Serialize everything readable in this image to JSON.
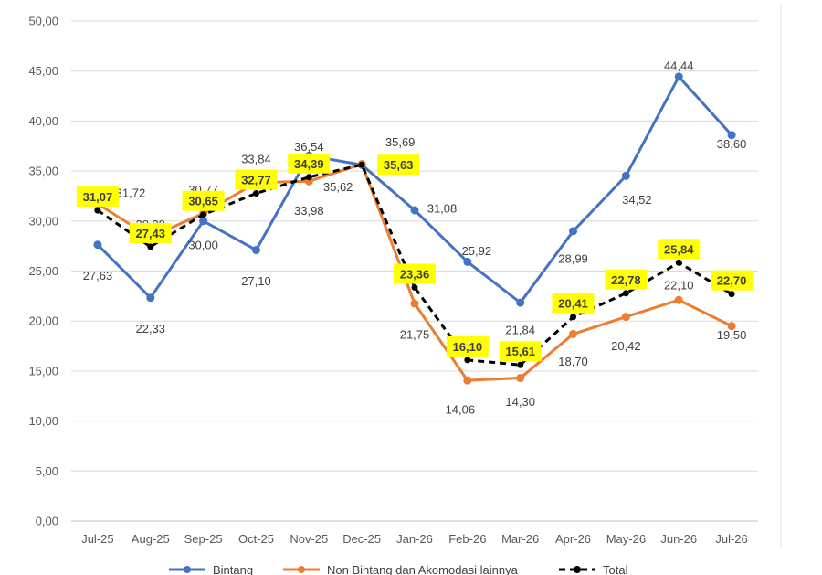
{
  "chart_data": {
    "type": "line",
    "categories": [
      "Jul-25",
      "Aug-25",
      "Sep-25",
      "Oct-25",
      "Nov-25",
      "Dec-25",
      "Jan-26",
      "Feb-26",
      "Mar-26",
      "Apr-26",
      "May-26",
      "Jun-26",
      "Jul-26"
    ],
    "ylim": [
      0,
      50
    ],
    "ytick_labels": [
      "0,00",
      "5,00",
      "10,00",
      "15,00",
      "20,00",
      "25,00",
      "30,00",
      "35,00",
      "40,00",
      "45,00",
      "50,00"
    ],
    "grid": true,
    "legend_position": "bottom",
    "series": [
      {
        "name": "Bintang",
        "color": "#4472C4",
        "style": "solid",
        "values": [
          27.63,
          22.33,
          30.0,
          27.1,
          36.54,
          35.62,
          31.08,
          25.92,
          21.84,
          28.99,
          34.52,
          44.44,
          38.6
        ],
        "labels": [
          "27,63",
          "22,33",
          "30,00",
          "27,10",
          "36,54",
          "35,62",
          "31,08",
          "25,92",
          "21,84",
          "28,99",
          "34,52",
          "44,44",
          "38,60"
        ]
      },
      {
        "name": "Non Bintang dan Akomodasi lainnya",
        "color": "#ED7D31",
        "style": "solid",
        "values": [
          31.72,
          28.39,
          30.77,
          33.84,
          33.98,
          35.69,
          21.75,
          14.06,
          14.3,
          18.7,
          20.42,
          22.1,
          19.5
        ],
        "labels": [
          "31,72",
          "28,39",
          "30,77",
          "33,84",
          "33,98",
          "35,69",
          "21,75",
          "14,06",
          "14,30",
          "18,70",
          "20,42",
          "22,10",
          "19,50"
        ]
      },
      {
        "name": "Total",
        "color": "#000000",
        "style": "dashed",
        "values": [
          31.07,
          27.43,
          30.65,
          32.77,
          34.39,
          35.63,
          23.36,
          16.1,
          15.61,
          20.41,
          22.78,
          25.84,
          22.7
        ],
        "labels": [
          "31,07",
          "27,43",
          "30,65",
          "32,77",
          "34,39",
          "35,63",
          "23,36",
          "16,10",
          "15,61",
          "20,41",
          "22,78",
          "25,84",
          "22,70"
        ],
        "highlight_color": "#FFFF00"
      }
    ]
  }
}
